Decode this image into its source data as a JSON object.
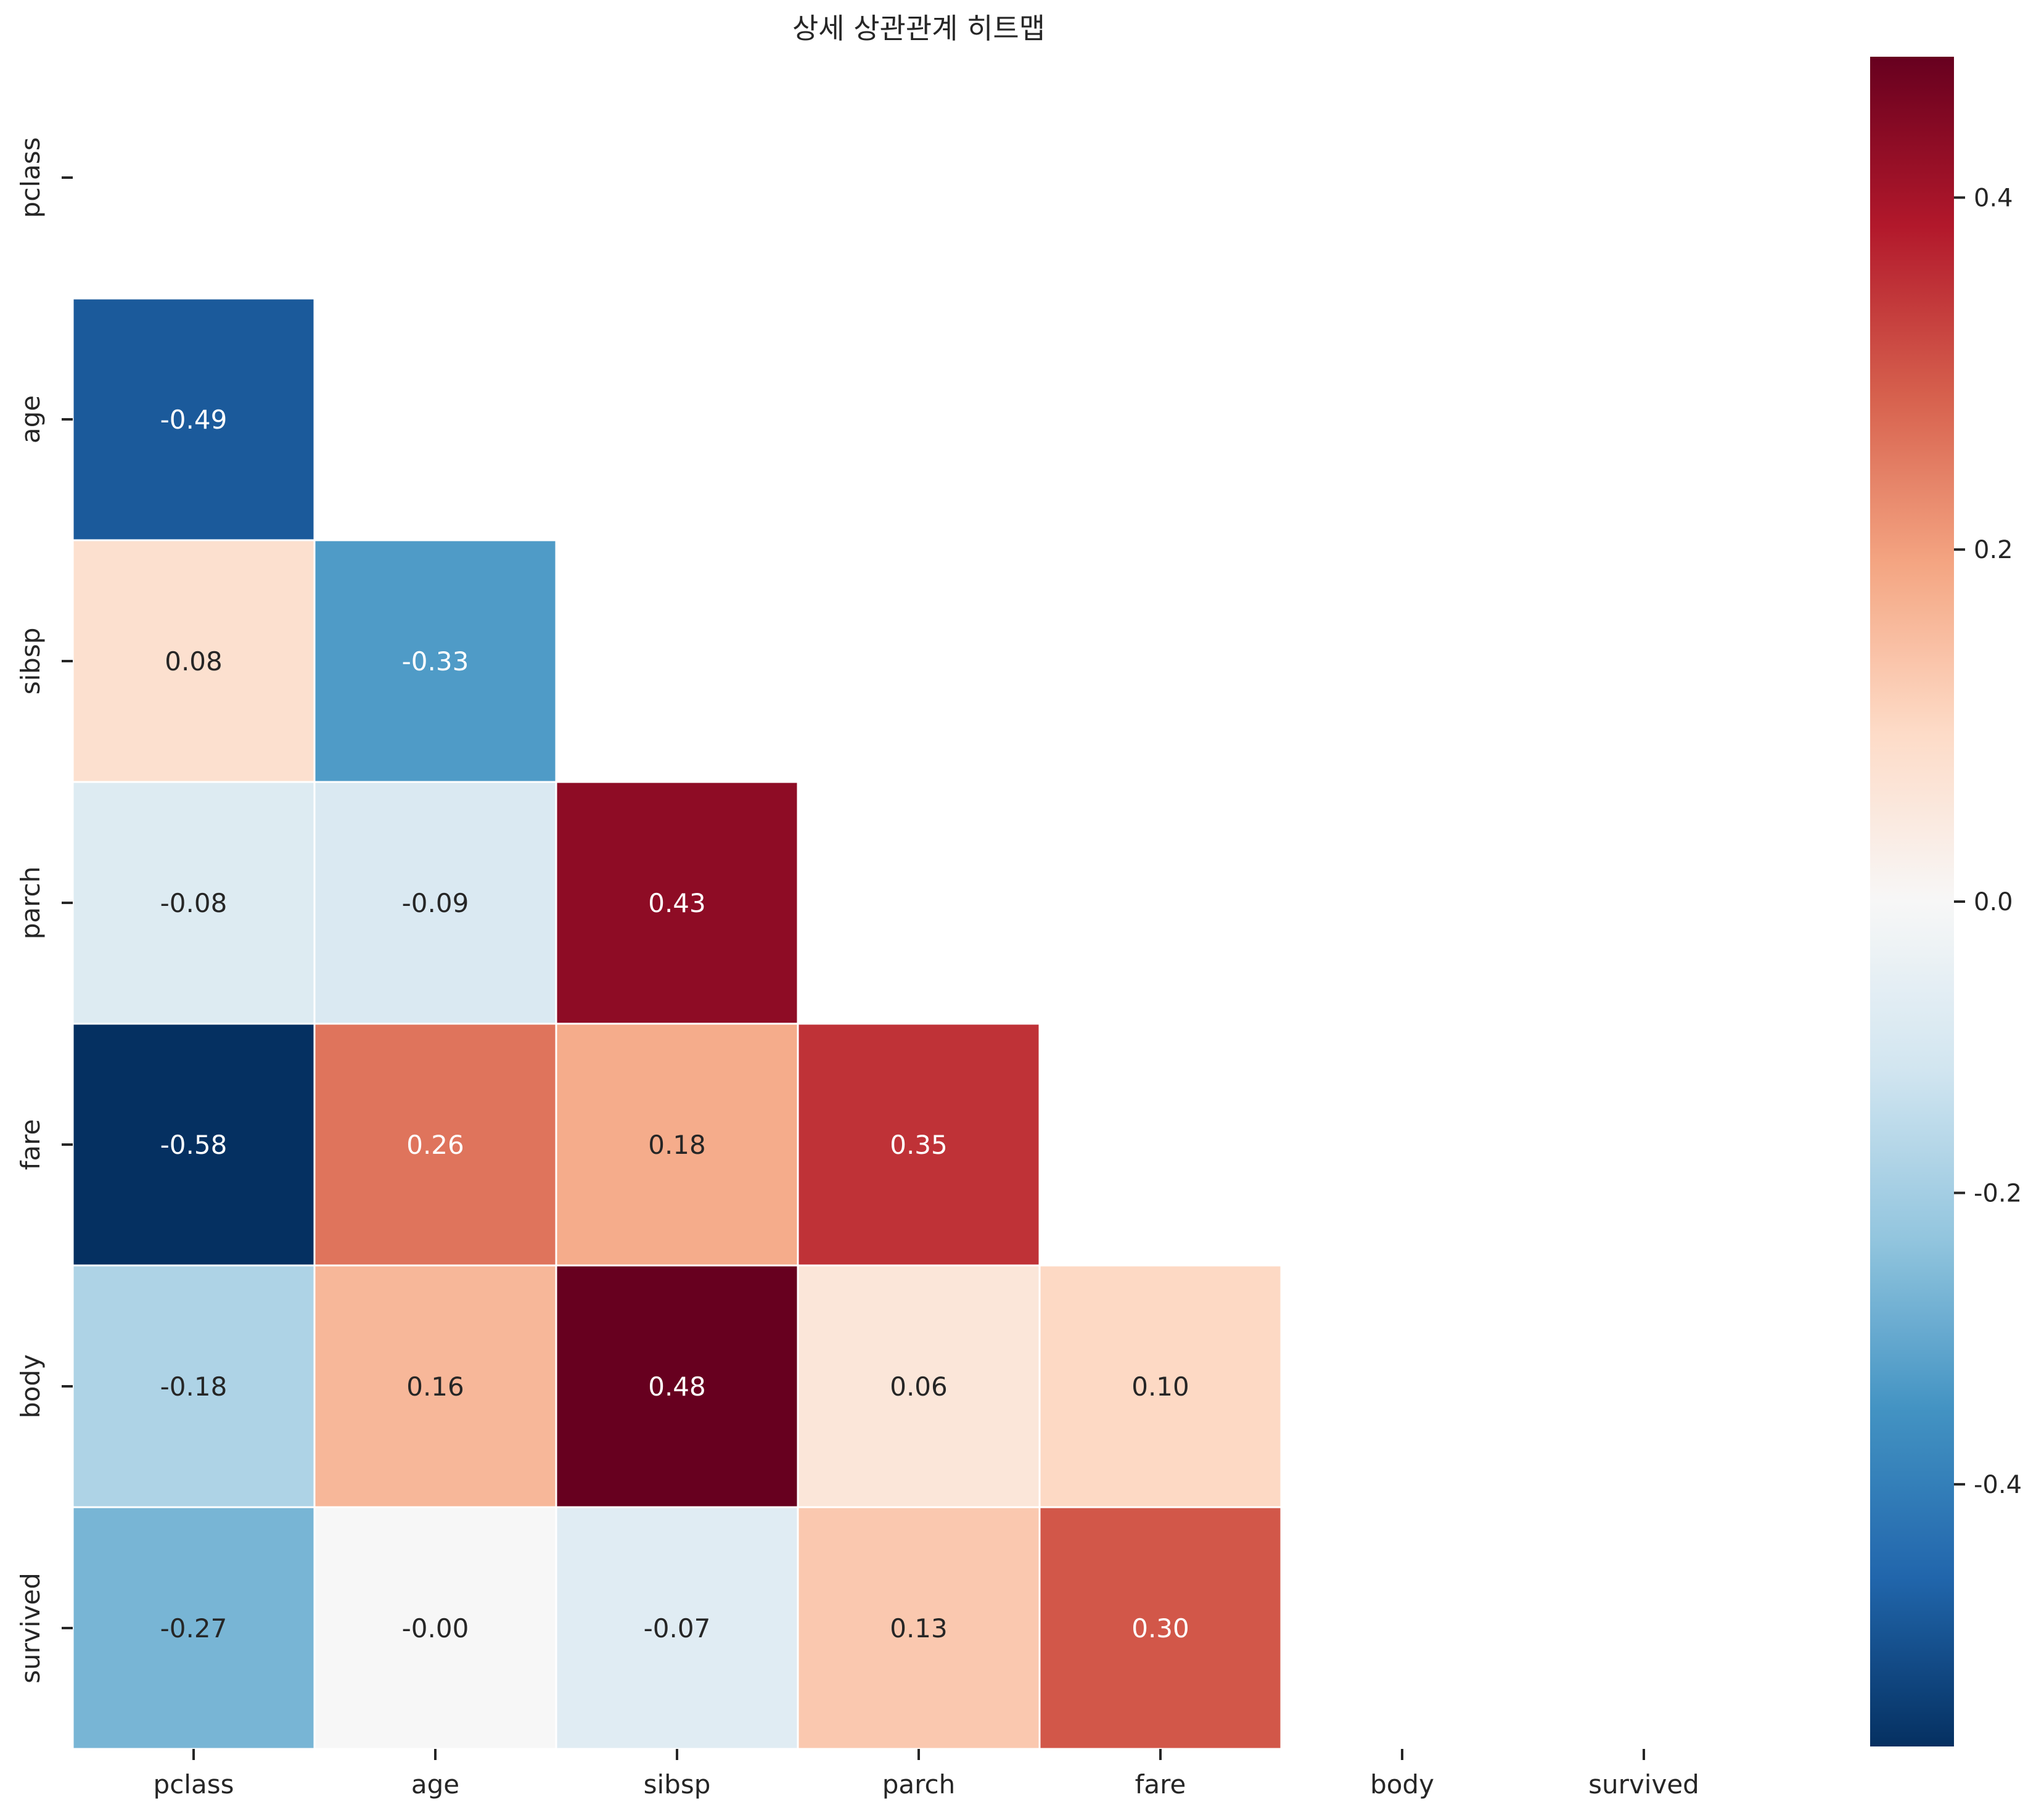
{
  "chart_data": {
    "type": "heatmap",
    "title": "상세 상관관계 히트맵",
    "xlabel": "",
    "ylabel": "",
    "x_labels": [
      "pclass",
      "age",
      "sibsp",
      "parch",
      "fare",
      "body",
      "survived"
    ],
    "y_labels": [
      "pclass",
      "age",
      "sibsp",
      "parch",
      "fare",
      "body",
      "survived"
    ],
    "mask": "upper-triangle-and-diagonal",
    "cells": [
      {
        "row": "age",
        "col": "pclass",
        "value": -0.49,
        "label": "-0.49"
      },
      {
        "row": "sibsp",
        "col": "pclass",
        "value": 0.08,
        "label": "0.08"
      },
      {
        "row": "sibsp",
        "col": "age",
        "value": -0.33,
        "label": "-0.33"
      },
      {
        "row": "parch",
        "col": "pclass",
        "value": -0.08,
        "label": "-0.08"
      },
      {
        "row": "parch",
        "col": "age",
        "value": -0.09,
        "label": "-0.09"
      },
      {
        "row": "parch",
        "col": "sibsp",
        "value": 0.43,
        "label": "0.43"
      },
      {
        "row": "fare",
        "col": "pclass",
        "value": -0.58,
        "label": "-0.58"
      },
      {
        "row": "fare",
        "col": "age",
        "value": 0.26,
        "label": "0.26"
      },
      {
        "row": "fare",
        "col": "sibsp",
        "value": 0.18,
        "label": "0.18"
      },
      {
        "row": "fare",
        "col": "parch",
        "value": 0.35,
        "label": "0.35"
      },
      {
        "row": "body",
        "col": "pclass",
        "value": -0.18,
        "label": "-0.18"
      },
      {
        "row": "body",
        "col": "age",
        "value": 0.16,
        "label": "0.16"
      },
      {
        "row": "body",
        "col": "sibsp",
        "value": 0.48,
        "label": "0.48"
      },
      {
        "row": "body",
        "col": "parch",
        "value": 0.06,
        "label": "0.06"
      },
      {
        "row": "body",
        "col": "fare",
        "value": 0.1,
        "label": "0.10"
      },
      {
        "row": "survived",
        "col": "pclass",
        "value": -0.27,
        "label": "-0.27"
      },
      {
        "row": "survived",
        "col": "age",
        "value": -0.0,
        "label": "-0.00"
      },
      {
        "row": "survived",
        "col": "sibsp",
        "value": -0.07,
        "label": "-0.07"
      },
      {
        "row": "survived",
        "col": "parch",
        "value": 0.13,
        "label": "0.13"
      },
      {
        "row": "survived",
        "col": "fare",
        "value": 0.3,
        "label": "0.30"
      }
    ],
    "colormap": "RdBu_r",
    "colors": {
      "stops": [
        "#053061",
        "#2166ac",
        "#4393c3",
        "#92c5de",
        "#d1e5f0",
        "#f7f7f7",
        "#fddbc7",
        "#f4a582",
        "#d6604d",
        "#b2182b",
        "#67001f"
      ]
    },
    "vmin": -0.58,
    "vmax": 0.48,
    "center": 0,
    "colorbar": {
      "ticks": [
        0.4,
        0.2,
        0.0,
        -0.2,
        -0.4
      ],
      "tick_labels": [
        "0.4",
        "0.2",
        "0.0",
        "-0.2",
        "-0.4"
      ]
    },
    "grid": false
  }
}
